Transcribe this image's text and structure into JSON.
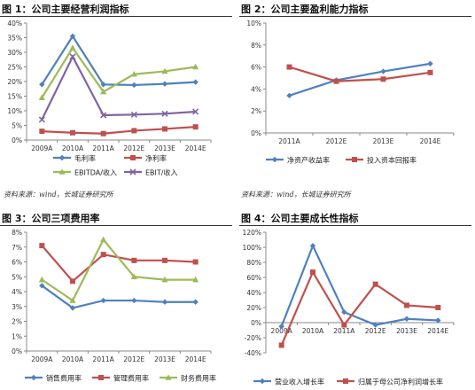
{
  "charts": [
    {
      "title": "图 1：公司主要经营利润指标",
      "source": "资料来源：wind，长城证券研究所",
      "chart_data": {
        "type": "line",
        "categories": [
          "2009A",
          "2010A",
          "2011A",
          "2012E",
          "2013E",
          "2014E"
        ],
        "ylim": [
          0,
          40
        ],
        "yticks": [
          "0%",
          "5%",
          "10%",
          "15%",
          "20%",
          "25%",
          "30%",
          "35%",
          "40%"
        ],
        "legend_position": "bottom",
        "grid": false,
        "series": [
          {
            "name": "毛利率",
            "color": "#4f81bd",
            "marker": "diamond",
            "values": [
              19,
              35.5,
              19,
              18.8,
              19.2,
              19.8
            ]
          },
          {
            "name": "净利率",
            "color": "#c0504d",
            "marker": "square",
            "values": [
              3,
              2.5,
              2.2,
              3.2,
              3.8,
              4.5
            ]
          },
          {
            "name": "EBITDA/收入",
            "color": "#9bbb59",
            "marker": "triangle",
            "values": [
              14.5,
              31.5,
              16.5,
              22.5,
              23.5,
              25
            ]
          },
          {
            "name": "EBIT/收入",
            "color": "#8064a2",
            "marker": "x",
            "values": [
              7,
              28.5,
              8.5,
              8.7,
              9,
              9.7
            ]
          }
        ]
      }
    },
    {
      "title": "图 2：公司主要盈利能力指标",
      "source": "资料来源：wind，长城证券研究所",
      "chart_data": {
        "type": "line",
        "categories": [
          "2011A",
          "2012E",
          "2013E",
          "2014E"
        ],
        "ylim": [
          0,
          10
        ],
        "yticks": [
          "0%",
          "2%",
          "4%",
          "6%",
          "8%",
          "10%"
        ],
        "legend_position": "bottom",
        "grid": false,
        "series": [
          {
            "name": "净资产收益率",
            "color": "#4f81bd",
            "marker": "diamond",
            "values": [
              3.4,
              4.8,
              5.6,
              6.3
            ]
          },
          {
            "name": "投入资本回报率",
            "color": "#c0504d",
            "marker": "square",
            "values": [
              6.0,
              4.7,
              4.9,
              5.5
            ]
          }
        ]
      }
    },
    {
      "title": "图 3：公司三项费用率",
      "source": "",
      "chart_data": {
        "type": "line",
        "categories": [
          "2009A",
          "2010A",
          "2011A",
          "2012E",
          "2013E",
          "2014E"
        ],
        "ylim": [
          0,
          8
        ],
        "yticks": [
          "0%",
          "1%",
          "2%",
          "3%",
          "4%",
          "5%",
          "6%",
          "7%",
          "8%"
        ],
        "legend_position": "bottom",
        "grid": false,
        "series": [
          {
            "name": "销售费用率",
            "color": "#4f81bd",
            "marker": "diamond",
            "values": [
              4.4,
              2.9,
              3.4,
              3.4,
              3.3,
              3.3
            ]
          },
          {
            "name": "管理费用率",
            "color": "#c0504d",
            "marker": "square",
            "values": [
              7.1,
              4.7,
              6.5,
              6.1,
              6.1,
              6.0
            ]
          },
          {
            "name": "财务费用率",
            "color": "#9bbb59",
            "marker": "triangle",
            "values": [
              4.8,
              3.4,
              7.5,
              5.0,
              4.8,
              4.8
            ]
          }
        ]
      }
    },
    {
      "title": "图 4：公司主要成长性指标",
      "source": "",
      "chart_data": {
        "type": "line",
        "categories": [
          "2009A",
          "2010A",
          "2011A",
          "2012E",
          "2013E",
          "2014E"
        ],
        "ylim": [
          -40,
          120
        ],
        "yticks": [
          "-40%",
          "-20%",
          "0%",
          "20%",
          "40%",
          "60%",
          "80%",
          "100%",
          "120%"
        ],
        "legend_position": "bottom",
        "grid": false,
        "series": [
          {
            "name": "营业收入增长率",
            "color": "#4f81bd",
            "marker": "diamond",
            "values": [
              -5,
              102,
              14,
              -3,
              5,
              3
            ]
          },
          {
            "name": "归属于母公司净利润增长率",
            "color": "#c0504d",
            "marker": "square",
            "values": [
              -30,
              67,
              -3,
              51,
              23,
              20
            ]
          }
        ]
      }
    }
  ]
}
